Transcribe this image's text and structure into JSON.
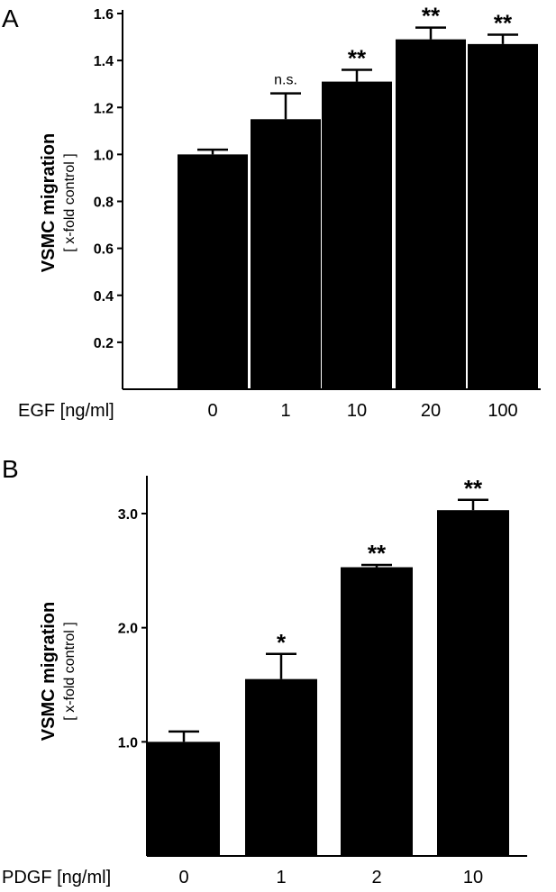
{
  "chart_data": [
    {
      "type": "bar",
      "panel": "A",
      "xlabel": "EGF [ng/ml]",
      "ylabel": "VSMC migration",
      "ylabel_sub": "[ x-fold control ]",
      "categories": [
        "0",
        "1",
        "10",
        "20",
        "100"
      ],
      "values": [
        1.0,
        1.15,
        1.31,
        1.49,
        1.47
      ],
      "errors": [
        0.02,
        0.11,
        0.05,
        0.05,
        0.04
      ],
      "significance": [
        "",
        "n.s.",
        "**",
        "**",
        "**"
      ],
      "ylim": [
        0,
        1.6
      ],
      "yticks": [
        "0.2",
        "0.4",
        "0.6",
        "0.8",
        "1.0",
        "1.2",
        "1.4",
        "1.6"
      ],
      "ytick_values": [
        0.2,
        0.4,
        0.6,
        0.8,
        1.0,
        1.2,
        1.4,
        1.6
      ],
      "bar_color": "#000000"
    },
    {
      "type": "bar",
      "panel": "B",
      "xlabel": "PDGF [ng/ml]",
      "ylabel": "VSMC migration",
      "ylabel_sub": "[ x-fold control ]",
      "categories": [
        "0",
        "1",
        "2",
        "10"
      ],
      "values": [
        1.0,
        1.55,
        2.53,
        3.03
      ],
      "errors": [
        0.09,
        0.22,
        0.02,
        0.09
      ],
      "significance": [
        "",
        "*",
        "**",
        "**"
      ],
      "ylim": [
        0,
        3.3
      ],
      "yticks": [
        "1.0",
        "2.0",
        "3.0"
      ],
      "ytick_values": [
        1.0,
        2.0,
        3.0
      ],
      "bar_color": "#000000"
    }
  ]
}
